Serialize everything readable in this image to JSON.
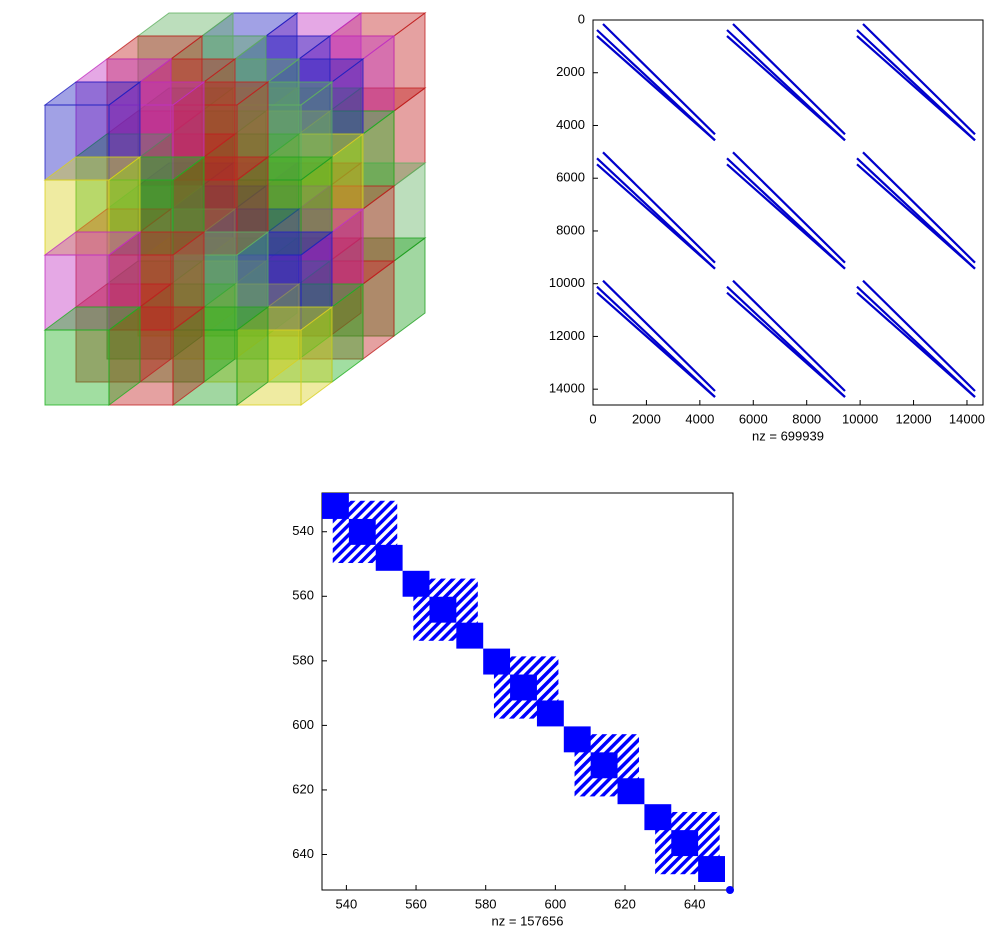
{
  "chart_data": [
    {
      "type": "spy",
      "xlabel": "nz = 699939",
      "xlim": [
        0,
        14600
      ],
      "ylim": [
        0,
        14600
      ],
      "y_reversed": true,
      "xticks": [
        0,
        2000,
        4000,
        6000,
        8000,
        10000,
        12000,
        14000
      ],
      "yticks": [
        0,
        2000,
        4000,
        6000,
        8000,
        10000,
        12000,
        14000
      ],
      "color": "#0000cc"
    },
    {
      "type": "spy",
      "xlabel": "nz = 157656",
      "xlim": [
        533,
        651
      ],
      "ylim": [
        528,
        651
      ],
      "y_reversed": true,
      "xticks": [
        540,
        560,
        580,
        600,
        620,
        640
      ],
      "yticks": [
        540,
        560,
        580,
        600,
        620,
        640
      ],
      "color": "#0000ff"
    }
  ]
}
